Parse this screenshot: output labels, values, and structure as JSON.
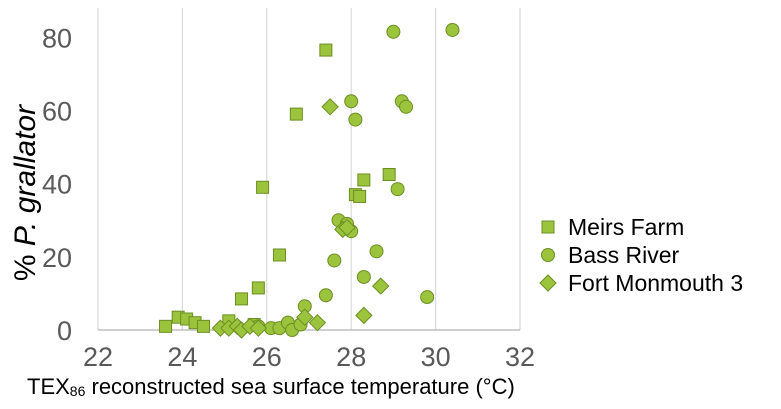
{
  "chart_data": {
    "type": "scatter",
    "xlabel_main": "TEX",
    "xlabel_sub": "86",
    "xlabel_rest": " reconstructed sea surface temperature (°C)",
    "ylabel_prefix": "% ",
    "ylabel_italic": "P. grallator",
    "xlim": [
      22,
      32
    ],
    "ylim": [
      0,
      88
    ],
    "xticks": [
      22,
      24,
      26,
      28,
      30,
      32
    ],
    "yticks": [
      0,
      20,
      40,
      60,
      80
    ],
    "grid": "vertical",
    "legend_position": "right",
    "marker_color": "#9bc43c",
    "marker_edge": "#6b8e23",
    "series": [
      {
        "name": "Meirs Farm",
        "marker": "square",
        "points": [
          [
            23.6,
            1
          ],
          [
            23.9,
            3.5
          ],
          [
            24.1,
            3
          ],
          [
            24.3,
            2
          ],
          [
            24.5,
            1
          ],
          [
            25.1,
            2.5
          ],
          [
            25.4,
            8.5
          ],
          [
            25.7,
            1.5
          ],
          [
            25.8,
            11.5
          ],
          [
            25.9,
            39
          ],
          [
            26.3,
            20.5
          ],
          [
            26.7,
            59
          ],
          [
            27.4,
            76.5
          ],
          [
            28.1,
            37
          ],
          [
            28.2,
            36.5
          ],
          [
            28.3,
            41
          ],
          [
            28.9,
            42.5
          ]
        ]
      },
      {
        "name": "Bass River",
        "marker": "circle",
        "points": [
          [
            25.8,
            1
          ],
          [
            26.1,
            0.5
          ],
          [
            26.3,
            0.5
          ],
          [
            26.5,
            2
          ],
          [
            26.6,
            0
          ],
          [
            26.8,
            1.5
          ],
          [
            26.9,
            6.5
          ],
          [
            27.4,
            9.5
          ],
          [
            27.6,
            19
          ],
          [
            27.7,
            30
          ],
          [
            27.9,
            29
          ],
          [
            28.0,
            27
          ],
          [
            28.0,
            62.5
          ],
          [
            28.1,
            57.5
          ],
          [
            28.3,
            14.5
          ],
          [
            28.6,
            21.5
          ],
          [
            29.0,
            81.5
          ],
          [
            29.1,
            38.5
          ],
          [
            29.2,
            62.5
          ],
          [
            29.3,
            61
          ],
          [
            29.8,
            9
          ],
          [
            30.4,
            82
          ]
        ]
      },
      {
        "name": "Fort Monmouth 3",
        "marker": "diamond",
        "points": [
          [
            24.9,
            0.5
          ],
          [
            25.1,
            0.5
          ],
          [
            25.3,
            1
          ],
          [
            25.4,
            0
          ],
          [
            25.6,
            1
          ],
          [
            25.8,
            0.5
          ],
          [
            26.9,
            3.5
          ],
          [
            27.2,
            2
          ],
          [
            27.5,
            61
          ],
          [
            27.8,
            27.5
          ],
          [
            27.9,
            28
          ],
          [
            28.3,
            4
          ],
          [
            28.7,
            12
          ]
        ]
      }
    ]
  }
}
